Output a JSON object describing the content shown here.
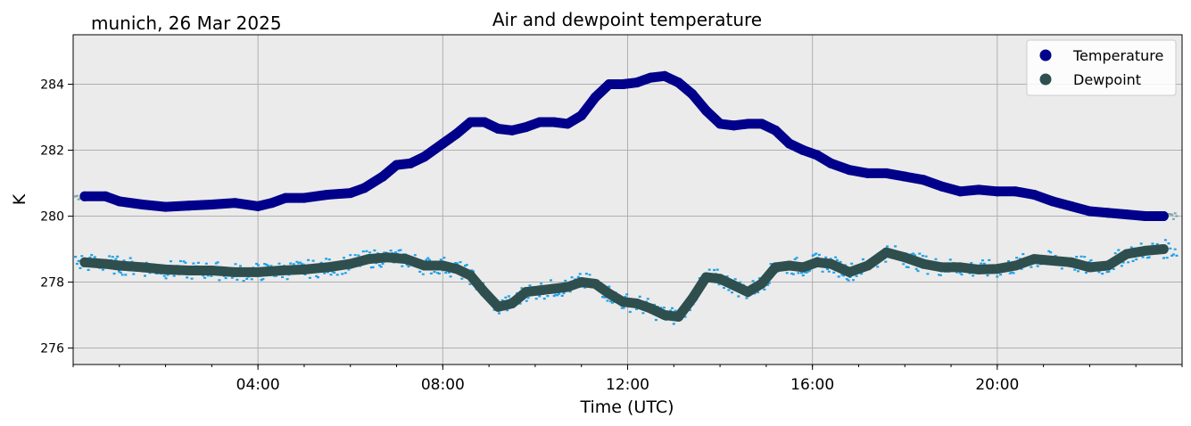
{
  "chart_data": {
    "type": "line",
    "title": "Air and dewpoint temperature",
    "subtitle": "munich, 26 Mar 2025",
    "xlabel": "Time (UTC)",
    "ylabel": "K",
    "x_unit": "hours_utc",
    "xlim": [
      0,
      24
    ],
    "ylim": [
      275.5,
      285.5
    ],
    "x_ticks": [
      {
        "value": 4,
        "label": "04:00"
      },
      {
        "value": 8,
        "label": "08:00"
      },
      {
        "value": 12,
        "label": "12:00"
      },
      {
        "value": 16,
        "label": "16:00"
      },
      {
        "value": 20,
        "label": "20:00"
      }
    ],
    "y_ticks": [
      {
        "value": 276,
        "label": "276"
      },
      {
        "value": 278,
        "label": "278"
      },
      {
        "value": 280,
        "label": "280"
      },
      {
        "value": 282,
        "label": "282"
      },
      {
        "value": 284,
        "label": "284"
      }
    ],
    "grid": true,
    "legend_position": "top-right",
    "background_color": "#ebebeb",
    "series": [
      {
        "name": "Temperature",
        "color": "#00008b",
        "raw_color": "#7fa6a6",
        "x": [
          0.25,
          0.7,
          1.0,
          1.5,
          2.0,
          2.5,
          3.0,
          3.5,
          4.0,
          4.3,
          4.6,
          5.0,
          5.5,
          6.0,
          6.3,
          6.7,
          7.0,
          7.3,
          7.6,
          8.0,
          8.3,
          8.6,
          8.9,
          9.2,
          9.5,
          9.8,
          10.1,
          10.4,
          10.7,
          11.0,
          11.3,
          11.6,
          11.9,
          12.2,
          12.5,
          12.8,
          13.1,
          13.4,
          13.7,
          14.0,
          14.3,
          14.6,
          14.9,
          15.2,
          15.5,
          15.8,
          16.1,
          16.4,
          16.8,
          17.2,
          17.6,
          18.0,
          18.4,
          18.8,
          19.2,
          19.6,
          20.0,
          20.4,
          20.8,
          21.2,
          21.6,
          22.0,
          22.4,
          22.8,
          23.2,
          23.6
        ],
        "y": [
          280.6,
          280.6,
          280.45,
          280.35,
          280.28,
          280.32,
          280.35,
          280.4,
          280.3,
          280.4,
          280.55,
          280.55,
          280.65,
          280.7,
          280.85,
          281.2,
          281.55,
          281.6,
          281.8,
          282.2,
          282.5,
          282.85,
          282.85,
          282.65,
          282.6,
          282.7,
          282.85,
          282.85,
          282.8,
          283.05,
          283.6,
          284.0,
          284.0,
          284.05,
          284.2,
          284.25,
          284.05,
          283.7,
          283.2,
          282.8,
          282.75,
          282.8,
          282.8,
          282.6,
          282.2,
          282.0,
          281.85,
          281.6,
          281.4,
          281.3,
          281.3,
          281.2,
          281.1,
          280.9,
          280.75,
          280.8,
          280.75,
          280.75,
          280.65,
          280.45,
          280.3,
          280.15,
          280.1,
          280.05,
          280.0,
          280.0
        ]
      },
      {
        "name": "Dewpoint",
        "color": "#2f4f4f",
        "raw_color": "#1da2ea",
        "x": [
          0.25,
          0.7,
          1.0,
          1.5,
          2.0,
          2.5,
          3.0,
          3.5,
          4.0,
          4.5,
          5.0,
          5.5,
          6.0,
          6.4,
          6.8,
          7.2,
          7.6,
          8.0,
          8.3,
          8.6,
          8.9,
          9.2,
          9.5,
          9.8,
          10.1,
          10.4,
          10.7,
          11.0,
          11.3,
          11.6,
          11.9,
          12.2,
          12.5,
          12.8,
          13.1,
          13.4,
          13.7,
          14.0,
          14.3,
          14.6,
          14.9,
          15.2,
          15.5,
          15.8,
          16.1,
          16.4,
          16.8,
          17.2,
          17.6,
          18.0,
          18.4,
          18.8,
          19.2,
          19.6,
          20.0,
          20.4,
          20.8,
          21.2,
          21.6,
          22.0,
          22.4,
          22.8,
          23.2,
          23.6
        ],
        "y": [
          278.6,
          278.55,
          278.5,
          278.45,
          278.38,
          278.35,
          278.35,
          278.3,
          278.3,
          278.35,
          278.38,
          278.45,
          278.55,
          278.7,
          278.75,
          278.7,
          278.5,
          278.5,
          278.4,
          278.2,
          277.7,
          277.25,
          277.35,
          277.7,
          277.75,
          277.8,
          277.85,
          278.0,
          277.95,
          277.65,
          277.4,
          277.35,
          277.2,
          277.0,
          276.95,
          277.5,
          278.15,
          278.1,
          277.9,
          277.7,
          277.95,
          278.45,
          278.5,
          278.45,
          278.6,
          278.55,
          278.3,
          278.5,
          278.9,
          278.75,
          278.55,
          278.45,
          278.45,
          278.38,
          278.4,
          278.5,
          278.7,
          278.65,
          278.6,
          278.45,
          278.5,
          278.85,
          278.95,
          279.0
        ]
      }
    ]
  }
}
